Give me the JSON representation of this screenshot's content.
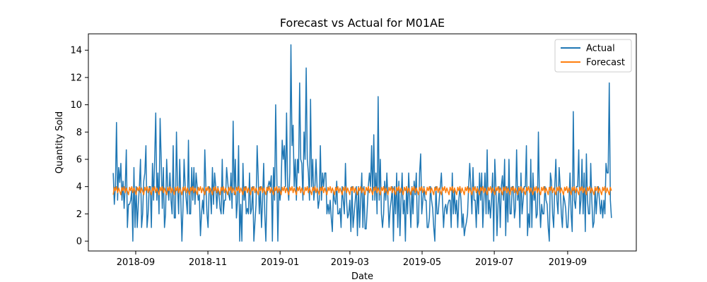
{
  "chart_data": {
    "type": "line",
    "title": "Forecast vs Actual for M01AE",
    "xlabel": "Date",
    "ylabel": "Quantity Sold",
    "x_start": "2018-08-13",
    "x_end": "2019-10-08",
    "xlim": [
      "2018-07-23",
      "2019-10-29"
    ],
    "ylim": [
      -0.72,
      15.2
    ],
    "x_ticks": [
      {
        "date": "2018-09-01",
        "label": "2018-09"
      },
      {
        "date": "2018-11-01",
        "label": "2018-11"
      },
      {
        "date": "2019-01-01",
        "label": "2019-01"
      },
      {
        "date": "2019-03-01",
        "label": "2019-03"
      },
      {
        "date": "2019-05-01",
        "label": "2019-05"
      },
      {
        "date": "2019-07-01",
        "label": "2019-07"
      },
      {
        "date": "2019-09-01",
        "label": "2019-09"
      }
    ],
    "y_ticks": [
      0,
      2,
      4,
      6,
      8,
      10,
      12,
      14
    ],
    "grid": false,
    "legend": "top-right",
    "series": [
      {
        "name": "Actual",
        "color": "#1f77b4",
        "values": [
          5.0,
          2.7,
          4.0,
          8.7,
          3.0,
          5.4,
          4.3,
          5.7,
          3.0,
          4.4,
          2.4,
          4.0,
          6.7,
          1.0,
          2.7,
          2.7,
          3.0,
          3.7,
          0.0,
          5.4,
          1.0,
          4.0,
          1.0,
          2.7,
          4.0,
          6.0,
          1.0,
          2.0,
          4.4,
          5.0,
          7.0,
          1.0,
          2.0,
          4.0,
          4.0,
          1.0,
          5.7,
          3.0,
          6.0,
          9.4,
          3.0,
          5.0,
          2.0,
          9.0,
          6.0,
          2.4,
          5.4,
          1.0,
          2.0,
          6.0,
          4.0,
          3.0,
          5.0,
          3.0,
          2.0,
          7.0,
          1.7,
          1.7,
          8.0,
          4.0,
          2.0,
          6.0,
          3.0,
          0.0,
          2.4,
          6.0,
          4.0,
          3.0,
          2.0,
          7.4,
          2.0,
          2.0,
          5.4,
          3.0,
          5.4,
          2.7,
          5.0,
          4.0,
          3.0,
          3.4,
          0.4,
          2.0,
          3.0,
          2.0,
          6.7,
          4.0,
          2.0,
          1.0,
          4.0,
          3.7,
          2.0,
          5.4,
          2.7,
          5.0,
          4.0,
          2.4,
          4.0,
          3.4,
          2.4,
          2.0,
          6.0,
          2.0,
          3.0,
          3.0,
          5.4,
          4.4,
          3.4,
          3.0,
          5.0,
          2.4,
          8.8,
          3.4,
          6.0,
          1.7,
          3.0,
          7.0,
          0.0,
          2.7,
          0.0,
          5.7,
          3.0,
          4.0,
          2.0,
          2.4,
          2.0,
          5.0,
          2.0,
          2.4,
          4.0,
          0.0,
          1.4,
          2.7,
          7.0,
          4.7,
          2.0,
          4.0,
          1.0,
          3.0,
          5.7,
          2.0,
          0.0,
          3.4,
          4.0,
          4.4,
          4.0,
          4.8,
          0.0,
          5.4,
          3.0,
          10.0,
          5.0,
          0.0,
          4.0,
          3.0,
          4.0,
          7.4,
          6.0,
          7.0,
          4.0,
          9.4,
          4.0,
          3.0,
          5.0,
          14.4,
          7.0,
          8.5,
          4.0,
          6.0,
          3.0,
          6.0,
          5.0,
          11.6,
          6.0,
          5.7,
          3.0,
          8.0,
          6.0,
          12.7,
          6.0,
          5.0,
          3.0,
          10.4,
          4.0,
          6.0,
          3.0,
          4.0,
          6.0,
          4.0,
          2.4,
          3.0,
          7.0,
          3.0,
          5.0,
          4.0,
          5.0,
          5.0,
          2.0,
          2.7,
          2.0,
          3.0,
          1.7,
          0.7,
          3.7,
          3.0,
          2.7,
          4.4,
          2.0,
          2.0,
          2.4,
          1.0,
          4.0,
          3.0,
          2.0,
          5.7,
          3.0,
          1.7,
          2.0,
          3.0,
          0.7,
          4.0,
          1.0,
          2.0,
          3.0,
          4.0,
          0.4,
          4.0,
          1.0,
          3.0,
          5.0,
          1.0,
          4.0,
          0.9,
          0.9,
          2.4,
          4.0,
          5.0,
          4.0,
          7.0,
          3.0,
          7.8,
          3.0,
          5.0,
          2.0,
          10.6,
          3.0,
          6.0,
          2.0,
          1.0,
          2.0,
          4.4,
          3.0,
          5.0,
          3.0,
          1.0,
          2.4,
          3.0,
          4.0,
          0.0,
          4.0,
          2.0,
          5.0,
          1.0,
          4.4,
          0.4,
          3.0,
          5.0,
          2.0,
          3.0,
          0.0,
          4.0,
          2.0,
          5.0,
          3.0,
          1.0,
          4.0,
          2.0,
          4.4,
          3.4,
          5.0,
          1.0,
          1.4,
          5.0,
          6.4,
          2.0,
          3.0,
          4.0,
          3.0,
          3.0,
          1.0,
          1.0,
          1.7,
          4.0,
          3.0,
          2.4,
          1.0,
          0.0,
          4.0,
          2.0,
          2.0,
          3.0,
          4.0,
          5.0,
          3.0,
          1.0,
          2.4,
          2.7,
          2.0,
          2.7,
          3.0,
          3.0,
          1.0,
          5.0,
          2.0,
          3.7,
          2.0,
          3.0,
          1.0,
          3.0,
          4.0,
          3.0,
          1.0,
          2.0,
          0.4,
          1.0,
          1.4,
          2.0,
          4.0,
          5.7,
          4.0,
          2.0,
          5.4,
          3.0,
          3.0,
          1.0,
          4.0,
          2.0,
          5.0,
          3.0,
          5.0,
          1.0,
          3.0,
          5.0,
          2.0,
          6.7,
          2.0,
          3.0,
          1.7,
          3.0,
          5.0,
          0.0,
          6.0,
          4.0,
          0.4,
          2.7,
          4.0,
          1.0,
          4.0,
          4.8,
          3.0,
          6.0,
          0.4,
          4.0,
          1.4,
          6.0,
          2.0,
          2.0,
          4.0,
          4.0,
          1.7,
          2.4,
          6.7,
          3.0,
          4.0,
          1.0,
          5.0,
          2.0,
          3.0,
          4.0,
          4.0,
          7.0,
          0.4,
          2.0,
          1.0,
          6.0,
          1.0,
          5.0,
          3.0,
          3.7,
          1.7,
          2.0,
          8.0,
          3.0,
          1.0,
          2.7,
          2.0,
          2.0,
          4.0,
          3.0,
          2.7,
          1.0,
          0.0,
          5.0,
          4.4,
          2.0,
          1.0,
          4.0,
          6.0,
          3.0,
          2.0,
          5.4,
          4.0,
          2.0,
          1.0,
          3.4,
          3.0,
          2.4,
          1.0,
          1.0,
          2.7,
          5.0,
          2.0,
          0.7,
          9.5,
          3.0,
          2.4,
          4.0,
          4.0,
          6.7,
          2.0,
          3.0,
          6.0,
          2.0,
          5.0,
          0.7,
          6.4,
          3.0,
          2.0,
          2.0,
          5.7,
          3.0,
          1.0,
          1.4,
          4.0,
          2.0,
          3.4,
          4.0,
          3.0,
          2.0,
          3.0,
          1.7,
          3.0,
          2.0,
          5.7,
          5.0,
          5.0,
          11.6,
          3.0,
          1.7
        ]
      },
      {
        "name": "Forecast",
        "color": "#ff7f0e",
        "weekly_pattern": [
          3.4,
          3.95,
          3.7,
          4.0,
          3.55,
          3.9,
          3.65
        ]
      }
    ]
  }
}
